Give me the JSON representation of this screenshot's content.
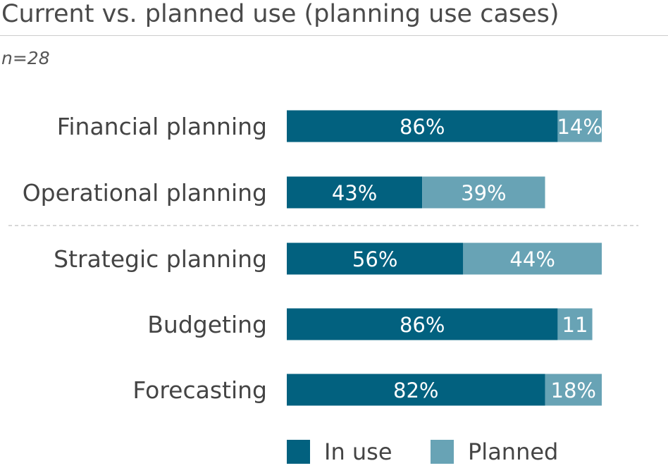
{
  "chart_data": {
    "type": "bar",
    "orientation": "horizontal",
    "stacked": true,
    "title": "Current vs. planned use (planning use cases)",
    "subtitle": "n=28",
    "categories": [
      "Financial planning",
      "Operational planning",
      "Strategic planning",
      "Budgeting",
      "Forecasting"
    ],
    "series": [
      {
        "name": "In use",
        "color": "#02617f",
        "values": [
          86,
          43,
          56,
          86,
          82
        ],
        "labels": [
          "86%",
          "43%",
          "56%",
          "86%",
          "82%"
        ]
      },
      {
        "name": "Planned",
        "color": "#68a3b5",
        "values": [
          14,
          39,
          44,
          11,
          18
        ],
        "labels": [
          "14%",
          "39%",
          "44%",
          "11",
          "18%"
        ]
      }
    ],
    "xlim": [
      0,
      100
    ],
    "separator_after_index": 1,
    "legend": "bottom"
  }
}
